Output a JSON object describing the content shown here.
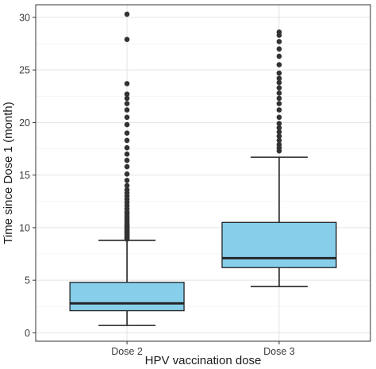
{
  "chart_data": {
    "type": "box",
    "xlabel": "HPV vaccination dose",
    "ylabel": "Time since Dose 1 (month)",
    "ylim": [
      -0.8,
      31.2
    ],
    "yticks": [
      0,
      5,
      10,
      15,
      20,
      25,
      30
    ],
    "grid": true,
    "legend": "none",
    "box_fill": "#87ceeb",
    "categories": [
      "Dose 2",
      "Dose 3"
    ],
    "boxes": [
      {
        "category": "Dose 2",
        "whisker_low": 0.7,
        "q1": 2.1,
        "median": 2.8,
        "q3": 4.8,
        "whisker_high": 8.8,
        "outliers": [
          8.9,
          9.0,
          9.1,
          9.2,
          9.3,
          9.4,
          9.5,
          9.6,
          9.7,
          9.8,
          9.9,
          10.0,
          10.1,
          10.2,
          10.3,
          10.5,
          10.7,
          10.9,
          11.1,
          11.3,
          11.5,
          11.8,
          12.1,
          12.4,
          12.7,
          13.0,
          13.3,
          13.6,
          14.0,
          14.5,
          15.1,
          15.8,
          16.4,
          17.0,
          17.6,
          18.3,
          19.0,
          19.8,
          20.5,
          21.2,
          21.8,
          22.3,
          22.7,
          23.7,
          27.9,
          30.3
        ]
      },
      {
        "category": "Dose 3",
        "whisker_low": 4.4,
        "q1": 6.2,
        "median": 7.1,
        "q3": 10.5,
        "whisker_high": 16.7,
        "outliers": [
          17.3,
          17.6,
          17.9,
          18.3,
          18.7,
          19.1,
          19.5,
          19.9,
          20.5,
          21.2,
          21.8,
          22.3,
          22.8,
          23.3,
          23.8,
          24.2,
          24.7,
          25.5,
          26.3,
          27.0,
          27.7,
          28.3,
          28.6
        ]
      }
    ]
  }
}
